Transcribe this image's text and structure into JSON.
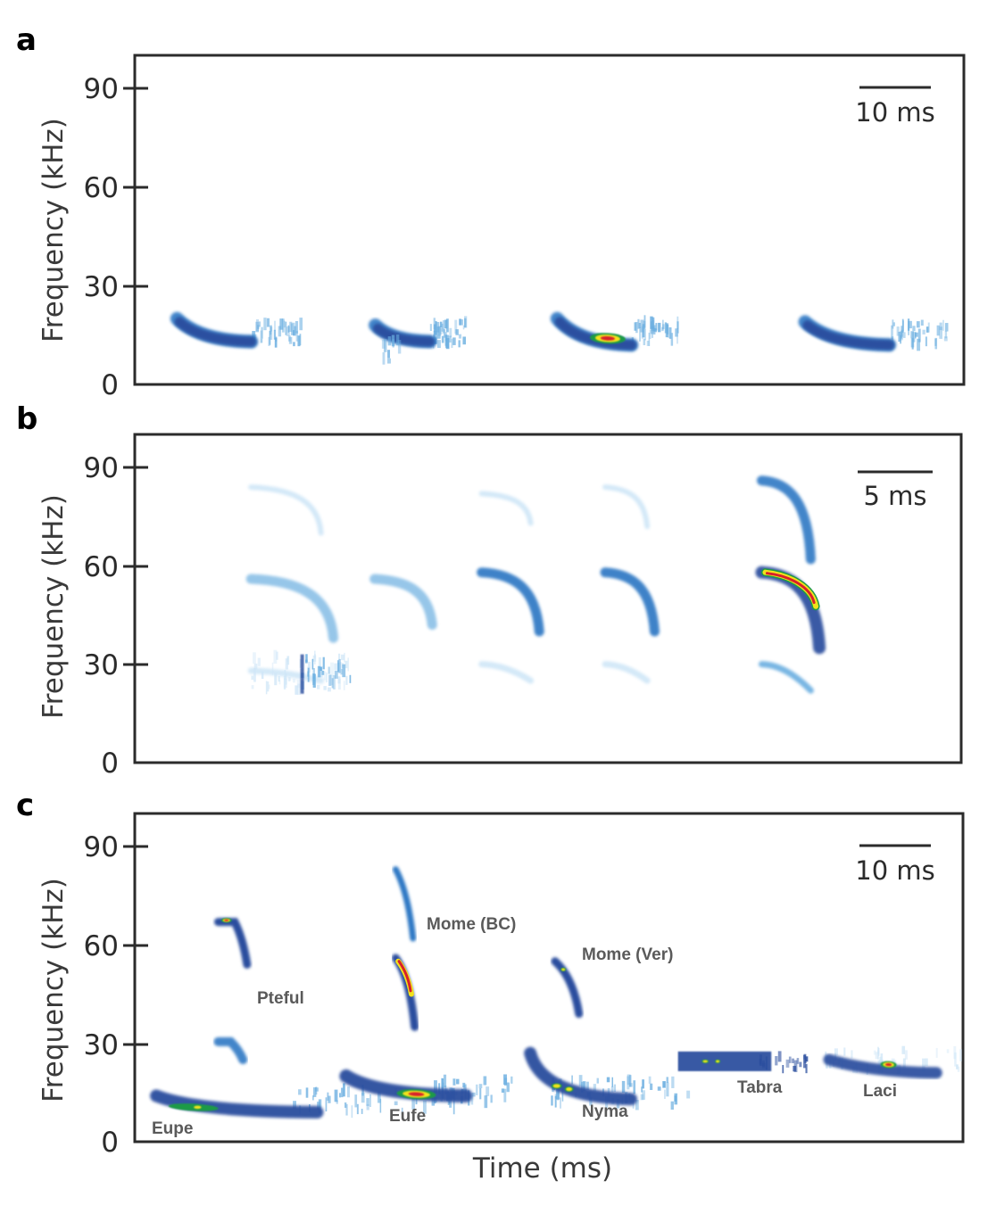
{
  "chart_data": [
    {
      "type": "heatmap",
      "panel": "a",
      "title": "",
      "xlabel": "",
      "ylabel": "Frequency (kHz)",
      "yticks": [
        0,
        30,
        60,
        90
      ],
      "ylim": [
        0,
        100
      ],
      "scale_bar": "10 ms",
      "grid": false,
      "calls": [
        {
          "start_khz": 20,
          "end_khz": 13,
          "duration_frac": [
            0.05,
            0.2
          ],
          "hotspot": false
        },
        {
          "start_khz": 18,
          "end_khz": 13,
          "duration_frac": [
            0.29,
            0.4
          ],
          "hotspot": false
        },
        {
          "start_khz": 20,
          "end_khz": 12,
          "duration_frac": [
            0.51,
            0.66
          ],
          "hotspot": true
        },
        {
          "start_khz": 19,
          "end_khz": 12,
          "duration_frac": [
            0.81,
            0.98
          ],
          "hotspot": false
        }
      ]
    },
    {
      "type": "heatmap",
      "panel": "b",
      "title": "",
      "xlabel": "",
      "ylabel": "Frequency (kHz)",
      "yticks": [
        0,
        30,
        60,
        90
      ],
      "ylim": [
        0,
        100
      ],
      "scale_bar": "5 ms",
      "grid": false,
      "calls": [
        {
          "fundamental_khz": [
            56,
            38
          ],
          "harmonic2_khz": [
            84,
            70
          ],
          "sub_khz": [
            28,
            25
          ],
          "duration_frac": [
            0.14,
            0.24
          ],
          "intensity": "low"
        },
        {
          "fundamental_khz": [
            56,
            42
          ],
          "duration_frac": [
            0.29,
            0.36
          ],
          "intensity": "low"
        },
        {
          "fundamental_khz": [
            58,
            40
          ],
          "harmonic2_khz": [
            82,
            73
          ],
          "sub_khz": [
            30,
            25
          ],
          "duration_frac": [
            0.42,
            0.49
          ],
          "intensity": "medium"
        },
        {
          "fundamental_khz": [
            58,
            40
          ],
          "harmonic2_khz": [
            84,
            72
          ],
          "sub_khz": [
            30,
            25
          ],
          "duration_frac": [
            0.57,
            0.63
          ],
          "intensity": "medium"
        },
        {
          "fundamental_khz": [
            58,
            35
          ],
          "harmonic2_khz": [
            86,
            62
          ],
          "sub_khz": [
            30,
            22
          ],
          "duration_frac": [
            0.76,
            0.83
          ],
          "intensity": "high"
        }
      ]
    },
    {
      "type": "heatmap",
      "panel": "c",
      "title": "",
      "xlabel": "Time (ms)",
      "ylabel": "Frequency (kHz)",
      "yticks": [
        0,
        30,
        60,
        90
      ],
      "ylim": [
        0,
        100
      ],
      "scale_bar": "10 ms",
      "grid": false,
      "species": [
        {
          "label": "Eupe",
          "start_khz": 14,
          "end_khz": 9
        },
        {
          "label": "Pteful",
          "start_khz": 68,
          "end_khz": 52
        },
        {
          "label": "Eufe",
          "start_khz": 21,
          "end_khz": 14
        },
        {
          "label": "Mome (BC)",
          "start_khz": 84,
          "end_khz": 34
        },
        {
          "label": "Nyma",
          "start_khz": 28,
          "end_khz": 14
        },
        {
          "label": "Mome (Ver)",
          "start_khz": 56,
          "end_khz": 38
        },
        {
          "label": "Tabra",
          "start_khz": 27,
          "end_khz": 22
        },
        {
          "label": "Laci",
          "start_khz": 26,
          "end_khz": 21
        }
      ]
    }
  ],
  "panels": {
    "a": {
      "letter": "a",
      "ylabel": "Frequency (kHz)",
      "scale": "10 ms",
      "ticks": [
        "0",
        "30",
        "60",
        "90"
      ]
    },
    "b": {
      "letter": "b",
      "ylabel": "Frequency (kHz)",
      "scale": "5 ms",
      "ticks": [
        "0",
        "30",
        "60",
        "90"
      ]
    },
    "c": {
      "letter": "c",
      "ylabel": "Frequency (kHz)",
      "scale": "10 ms",
      "ticks": [
        "0",
        "30",
        "60",
        "90"
      ],
      "xlabel": "Time (ms)"
    }
  },
  "colors": {
    "faint": "#cfe6f7",
    "light": "#6aaee0",
    "mid": "#2f78c4",
    "dark": "#2a4e9e",
    "green": "#1e9a46",
    "yellow": "#f2e21b",
    "red": "#d8202a",
    "axis": "#2b2b2b"
  }
}
